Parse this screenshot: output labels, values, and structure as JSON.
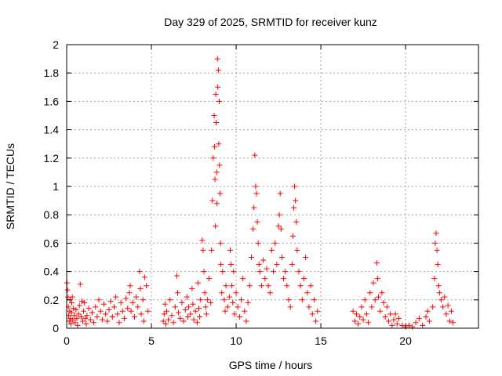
{
  "chart_data": {
    "type": "scatter",
    "title": "Day 329 of 2025, SRMTID for receiver kunz",
    "xlabel": "GPS time / hours",
    "ylabel": "SRMTID / TECUs",
    "xlim": [
      0,
      24.3
    ],
    "ylim": [
      0,
      2
    ],
    "xticks": [
      0,
      5,
      10,
      15,
      20
    ],
    "xtick_labels": [
      "0",
      "5",
      "10",
      "15",
      "20"
    ],
    "yticks": [
      0,
      0.2,
      0.4,
      0.6,
      0.8,
      1,
      1.2,
      1.4,
      1.6,
      1.8,
      2
    ],
    "ytick_labels": [
      "0",
      "0.2",
      "0.4",
      "0.6",
      "0.8",
      "1",
      "1.2",
      "1.4",
      "1.6",
      "1.8",
      "2"
    ],
    "grid": true,
    "marker": "+",
    "series": [
      {
        "name": "SRMTID",
        "color": "#ff0000",
        "points": [
          [
            0.02,
            0.32
          ],
          [
            0.05,
            0.27
          ],
          [
            0.08,
            0.22
          ],
          [
            0.1,
            0.15
          ],
          [
            0.12,
            0.09
          ],
          [
            0.15,
            0.05
          ],
          [
            0.18,
            0.12
          ],
          [
            0.2,
            0.2
          ],
          [
            0.22,
            0.07
          ],
          [
            0.25,
            0.03
          ],
          [
            0.28,
            0.11
          ],
          [
            0.3,
            0.18
          ],
          [
            0.33,
            0.22
          ],
          [
            0.36,
            0.06
          ],
          [
            0.4,
            0.14
          ],
          [
            0.45,
            0.09
          ],
          [
            0.5,
            0.04
          ],
          [
            0.55,
            0.13
          ],
          [
            0.6,
            0.07
          ],
          [
            0.65,
            0.02
          ],
          [
            0.7,
            0.1
          ],
          [
            0.75,
            0.16
          ],
          [
            0.8,
            0.31
          ],
          [
            0.85,
            0.08
          ],
          [
            0.9,
            0.19
          ],
          [
            0.95,
            0.05
          ],
          [
            1.0,
            0.12
          ],
          [
            1.05,
            0.18
          ],
          [
            1.1,
            0.07
          ],
          [
            1.15,
            0.03
          ],
          [
            1.2,
            0.09
          ],
          [
            1.3,
            0.14
          ],
          [
            1.4,
            0.06
          ],
          [
            1.5,
            0.11
          ],
          [
            1.6,
            0.04
          ],
          [
            1.7,
            0.15
          ],
          [
            1.8,
            0.08
          ],
          [
            1.9,
            0.2
          ],
          [
            2.0,
            0.12
          ],
          [
            2.1,
            0.06
          ],
          [
            2.2,
            0.17
          ],
          [
            2.3,
            0.1
          ],
          [
            2.4,
            0.05
          ],
          [
            2.5,
            0.13
          ],
          [
            2.6,
            0.19
          ],
          [
            2.7,
            0.08
          ],
          [
            2.8,
            0.15
          ],
          [
            2.9,
            0.22
          ],
          [
            3.0,
            0.1
          ],
          [
            3.1,
            0.04
          ],
          [
            3.2,
            0.18
          ],
          [
            3.3,
            0.12
          ],
          [
            3.4,
            0.07
          ],
          [
            3.5,
            0.21
          ],
          [
            3.6,
            0.14
          ],
          [
            3.7,
            0.25
          ],
          [
            3.75,
            0.3
          ],
          [
            3.8,
            0.12
          ],
          [
            3.9,
            0.18
          ],
          [
            4.0,
            0.08
          ],
          [
            4.1,
            0.22
          ],
          [
            4.2,
            0.15
          ],
          [
            4.3,
            0.4
          ],
          [
            4.35,
            0.28
          ],
          [
            4.4,
            0.1
          ],
          [
            4.5,
            0.2
          ],
          [
            4.55,
            0.05
          ],
          [
            4.6,
            0.36
          ],
          [
            4.7,
            0.3
          ],
          [
            4.8,
            0.12
          ],
          [
            5.7,
            0.05
          ],
          [
            5.75,
            0.1
          ],
          [
            5.8,
            0.17
          ],
          [
            5.85,
            0.03
          ],
          [
            5.9,
            0.12
          ],
          [
            6.0,
            0.06
          ],
          [
            6.1,
            0.2
          ],
          [
            6.2,
            0.09
          ],
          [
            6.3,
            0.04
          ],
          [
            6.4,
            0.15
          ],
          [
            6.5,
            0.37
          ],
          [
            6.55,
            0.25
          ],
          [
            6.6,
            0.11
          ],
          [
            6.7,
            0.07
          ],
          [
            6.8,
            0.18
          ],
          [
            6.9,
            0.05
          ],
          [
            7.0,
            0.13
          ],
          [
            7.1,
            0.22
          ],
          [
            7.15,
            0.08
          ],
          [
            7.2,
            0.15
          ],
          [
            7.3,
            0.1
          ],
          [
            7.4,
            0.28
          ],
          [
            7.45,
            0.17
          ],
          [
            7.5,
            0.06
          ],
          [
            7.6,
            0.12
          ],
          [
            7.7,
            0.04
          ],
          [
            7.75,
            0.32
          ],
          [
            7.8,
            0.14
          ],
          [
            7.85,
            0.08
          ],
          [
            7.9,
            0.2
          ],
          [
            8.0,
            0.62
          ],
          [
            8.05,
            0.55
          ],
          [
            8.1,
            0.4
          ],
          [
            8.15,
            0.25
          ],
          [
            8.2,
            0.15
          ],
          [
            8.25,
            0.1
          ],
          [
            8.3,
            0.2
          ],
          [
            8.4,
            0.35
          ],
          [
            8.5,
            0.18
          ],
          [
            8.55,
            0.55
          ],
          [
            8.6,
            0.9
          ],
          [
            8.65,
            1.2
          ],
          [
            8.7,
            1.5
          ],
          [
            8.72,
            1.28
          ],
          [
            8.75,
            1.05
          ],
          [
            8.78,
            0.72
          ],
          [
            8.8,
            1.65
          ],
          [
            8.82,
            1.45
          ],
          [
            8.85,
            1.1
          ],
          [
            8.87,
            0.88
          ],
          [
            8.9,
            1.9
          ],
          [
            8.92,
            1.7
          ],
          [
            8.95,
            1.82
          ],
          [
            8.97,
            1.3
          ],
          [
            9.0,
            1.6
          ],
          [
            9.02,
            1.15
          ],
          [
            9.05,
            0.95
          ],
          [
            9.08,
            0.6
          ],
          [
            9.1,
            0.45
          ],
          [
            9.15,
            0.25
          ],
          [
            9.2,
            0.4
          ],
          [
            9.3,
            0.2
          ],
          [
            9.35,
            0.12
          ],
          [
            9.4,
            0.3
          ],
          [
            9.5,
            0.15
          ],
          [
            9.6,
            0.22
          ],
          [
            9.65,
            0.55
          ],
          [
            9.7,
            0.45
          ],
          [
            9.75,
            0.3
          ],
          [
            9.8,
            0.18
          ],
          [
            9.85,
            0.4
          ],
          [
            9.9,
            0.1
          ],
          [
            10.0,
            0.25
          ],
          [
            10.1,
            0.15
          ],
          [
            10.2,
            0.08
          ],
          [
            10.3,
            0.2
          ],
          [
            10.4,
            0.35
          ],
          [
            10.5,
            0.12
          ],
          [
            10.6,
            0.05
          ],
          [
            10.7,
            0.18
          ],
          [
            10.8,
            0.3
          ],
          [
            10.9,
            0.5
          ],
          [
            11.0,
            0.7
          ],
          [
            11.05,
            0.85
          ],
          [
            11.1,
            1.22
          ],
          [
            11.15,
            1.0
          ],
          [
            11.2,
            0.95
          ],
          [
            11.25,
            0.75
          ],
          [
            11.3,
            0.6
          ],
          [
            11.35,
            0.45
          ],
          [
            11.4,
            0.4
          ],
          [
            11.5,
            0.3
          ],
          [
            11.6,
            0.48
          ],
          [
            11.7,
            0.35
          ],
          [
            11.8,
            0.42
          ],
          [
            11.9,
            0.3
          ],
          [
            12.0,
            0.25
          ],
          [
            12.1,
            0.55
          ],
          [
            12.2,
            0.4
          ],
          [
            12.3,
            0.6
          ],
          [
            12.4,
            0.45
          ],
          [
            12.5,
            0.72
          ],
          [
            12.55,
            0.8
          ],
          [
            12.6,
            0.95
          ],
          [
            12.65,
            0.7
          ],
          [
            12.7,
            0.5
          ],
          [
            12.8,
            0.35
          ],
          [
            12.9,
            0.4
          ],
          [
            13.0,
            0.3
          ],
          [
            13.1,
            0.2
          ],
          [
            13.2,
            0.15
          ],
          [
            13.3,
            0.45
          ],
          [
            13.35,
            0.65
          ],
          [
            13.4,
            0.85
          ],
          [
            13.45,
            1.0
          ],
          [
            13.5,
            0.9
          ],
          [
            13.55,
            0.75
          ],
          [
            13.6,
            0.55
          ],
          [
            13.7,
            0.4
          ],
          [
            13.8,
            0.3
          ],
          [
            13.9,
            0.2
          ],
          [
            14.0,
            0.35
          ],
          [
            14.1,
            0.5
          ],
          [
            14.2,
            0.25
          ],
          [
            14.3,
            0.15
          ],
          [
            14.4,
            0.3
          ],
          [
            14.5,
            0.1
          ],
          [
            14.6,
            0.2
          ],
          [
            14.7,
            0.05
          ],
          [
            14.8,
            0.12
          ],
          [
            16.9,
            0.12
          ],
          [
            17.0,
            0.05
          ],
          [
            17.1,
            0.1
          ],
          [
            17.2,
            0.03
          ],
          [
            17.3,
            0.08
          ],
          [
            17.4,
            0.15
          ],
          [
            17.5,
            0.06
          ],
          [
            17.6,
            0.2
          ],
          [
            17.7,
            0.1
          ],
          [
            17.8,
            0.04
          ],
          [
            17.9,
            0.25
          ],
          [
            18.0,
            0.15
          ],
          [
            18.1,
            0.32
          ],
          [
            18.2,
            0.2
          ],
          [
            18.3,
            0.46
          ],
          [
            18.35,
            0.35
          ],
          [
            18.4,
            0.22
          ],
          [
            18.5,
            0.12
          ],
          [
            18.6,
            0.25
          ],
          [
            18.7,
            0.18
          ],
          [
            18.8,
            0.08
          ],
          [
            18.9,
            0.15
          ],
          [
            19.0,
            0.05
          ],
          [
            19.1,
            0.1
          ],
          [
            19.2,
            0.02
          ],
          [
            19.3,
            0.06
          ],
          [
            19.4,
            0.1
          ],
          [
            19.5,
            0.03
          ],
          [
            19.6,
            0.07
          ],
          [
            19.8,
            0.02
          ],
          [
            20.0,
            0.01
          ],
          [
            20.2,
            0.02
          ],
          [
            20.4,
            0.01
          ],
          [
            20.6,
            0.04
          ],
          [
            20.8,
            0.07
          ],
          [
            21.0,
            0.02
          ],
          [
            21.2,
            0.08
          ],
          [
            21.3,
            0.12
          ],
          [
            21.4,
            0.05
          ],
          [
            21.6,
            0.15
          ],
          [
            21.7,
            0.35
          ],
          [
            21.75,
            0.6
          ],
          [
            21.8,
            0.67
          ],
          [
            21.85,
            0.55
          ],
          [
            21.9,
            0.45
          ],
          [
            21.95,
            0.3
          ],
          [
            22.0,
            0.25
          ],
          [
            22.1,
            0.2
          ],
          [
            22.2,
            0.15
          ],
          [
            22.3,
            0.22
          ],
          [
            22.4,
            0.1
          ],
          [
            22.5,
            0.16
          ],
          [
            22.6,
            0.05
          ],
          [
            22.7,
            0.12
          ],
          [
            22.8,
            0.04
          ]
        ]
      }
    ]
  }
}
